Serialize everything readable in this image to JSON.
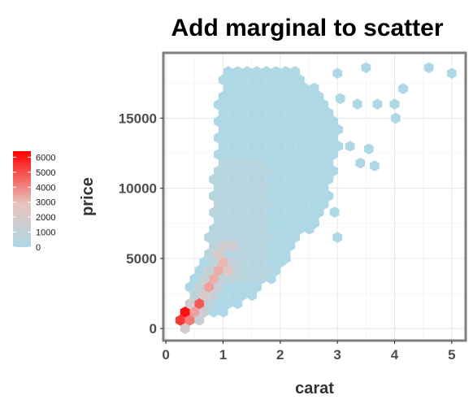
{
  "chart_data": {
    "type": "hexbin",
    "title": "Add marginal to scatter",
    "xlabel": "carat",
    "ylabel": "price",
    "xlim": [
      -0.03,
      5.23
    ],
    "ylim": [
      -800,
      19600
    ],
    "x_ticks": [
      0,
      1,
      2,
      3,
      4,
      5
    ],
    "x_tick_labels": [
      "0",
      "1",
      "2",
      "3",
      "4",
      "5"
    ],
    "y_ticks": [
      0,
      5000,
      10000,
      15000
    ],
    "y_tick_labels": [
      "0",
      "5000",
      "10000",
      "15000"
    ],
    "grid": true,
    "legend": {
      "position": "left",
      "min": 0,
      "max": 6400,
      "ticks": [
        0,
        1000,
        2000,
        3000,
        4000,
        5000,
        6000
      ],
      "tick_labels": [
        "0",
        "1000",
        "2000",
        "3000",
        "4000",
        "5000",
        "6000"
      ],
      "low_color": "#add8e6",
      "mid_color": "#e8c4be",
      "high_color": "#ff0000"
    },
    "outliers": [
      {
        "x": 3.0,
        "y": 18200
      },
      {
        "x": 3.05,
        "y": 16400
      },
      {
        "x": 3.22,
        "y": 13000
      },
      {
        "x": 3.4,
        "y": 11800
      },
      {
        "x": 3.55,
        "y": 12800
      },
      {
        "x": 3.5,
        "y": 18600
      },
      {
        "x": 3.65,
        "y": 11600
      },
      {
        "x": 3.7,
        "y": 16000
      },
      {
        "x": 3.35,
        "y": 16000
      },
      {
        "x": 4.0,
        "y": 16000
      },
      {
        "x": 4.02,
        "y": 15000
      },
      {
        "x": 4.15,
        "y": 17100
      },
      {
        "x": 4.6,
        "y": 18600
      },
      {
        "x": 5.0,
        "y": 18200
      },
      {
        "x": 3.0,
        "y": 6500
      },
      {
        "x": 2.95,
        "y": 8300
      },
      {
        "x": 2.6,
        "y": 7500
      },
      {
        "x": 2.65,
        "y": 9000
      },
      {
        "x": 2.1,
        "y": 5000
      },
      {
        "x": 1.95,
        "y": 7500
      }
    ],
    "hot_bins": [
      {
        "x": 0.3,
        "y": 1000,
        "count": 6100
      },
      {
        "x": 0.25,
        "y": 600,
        "count": 5400
      },
      {
        "x": 0.4,
        "y": 800,
        "count": 4200
      },
      {
        "x": 0.55,
        "y": 1600,
        "count": 4800
      },
      {
        "x": 0.5,
        "y": 1200,
        "count": 3500
      },
      {
        "x": 0.72,
        "y": 2700,
        "count": 3500
      },
      {
        "x": 0.9,
        "y": 3800,
        "count": 3300
      },
      {
        "x": 1.02,
        "y": 4700,
        "count": 3100
      },
      {
        "x": 1.05,
        "y": 4000,
        "count": 2600
      },
      {
        "x": 0.95,
        "y": 5300,
        "count": 2100
      },
      {
        "x": 1.1,
        "y": 5800,
        "count": 1700
      },
      {
        "x": 0.62,
        "y": 2100,
        "count": 2200
      }
    ]
  }
}
